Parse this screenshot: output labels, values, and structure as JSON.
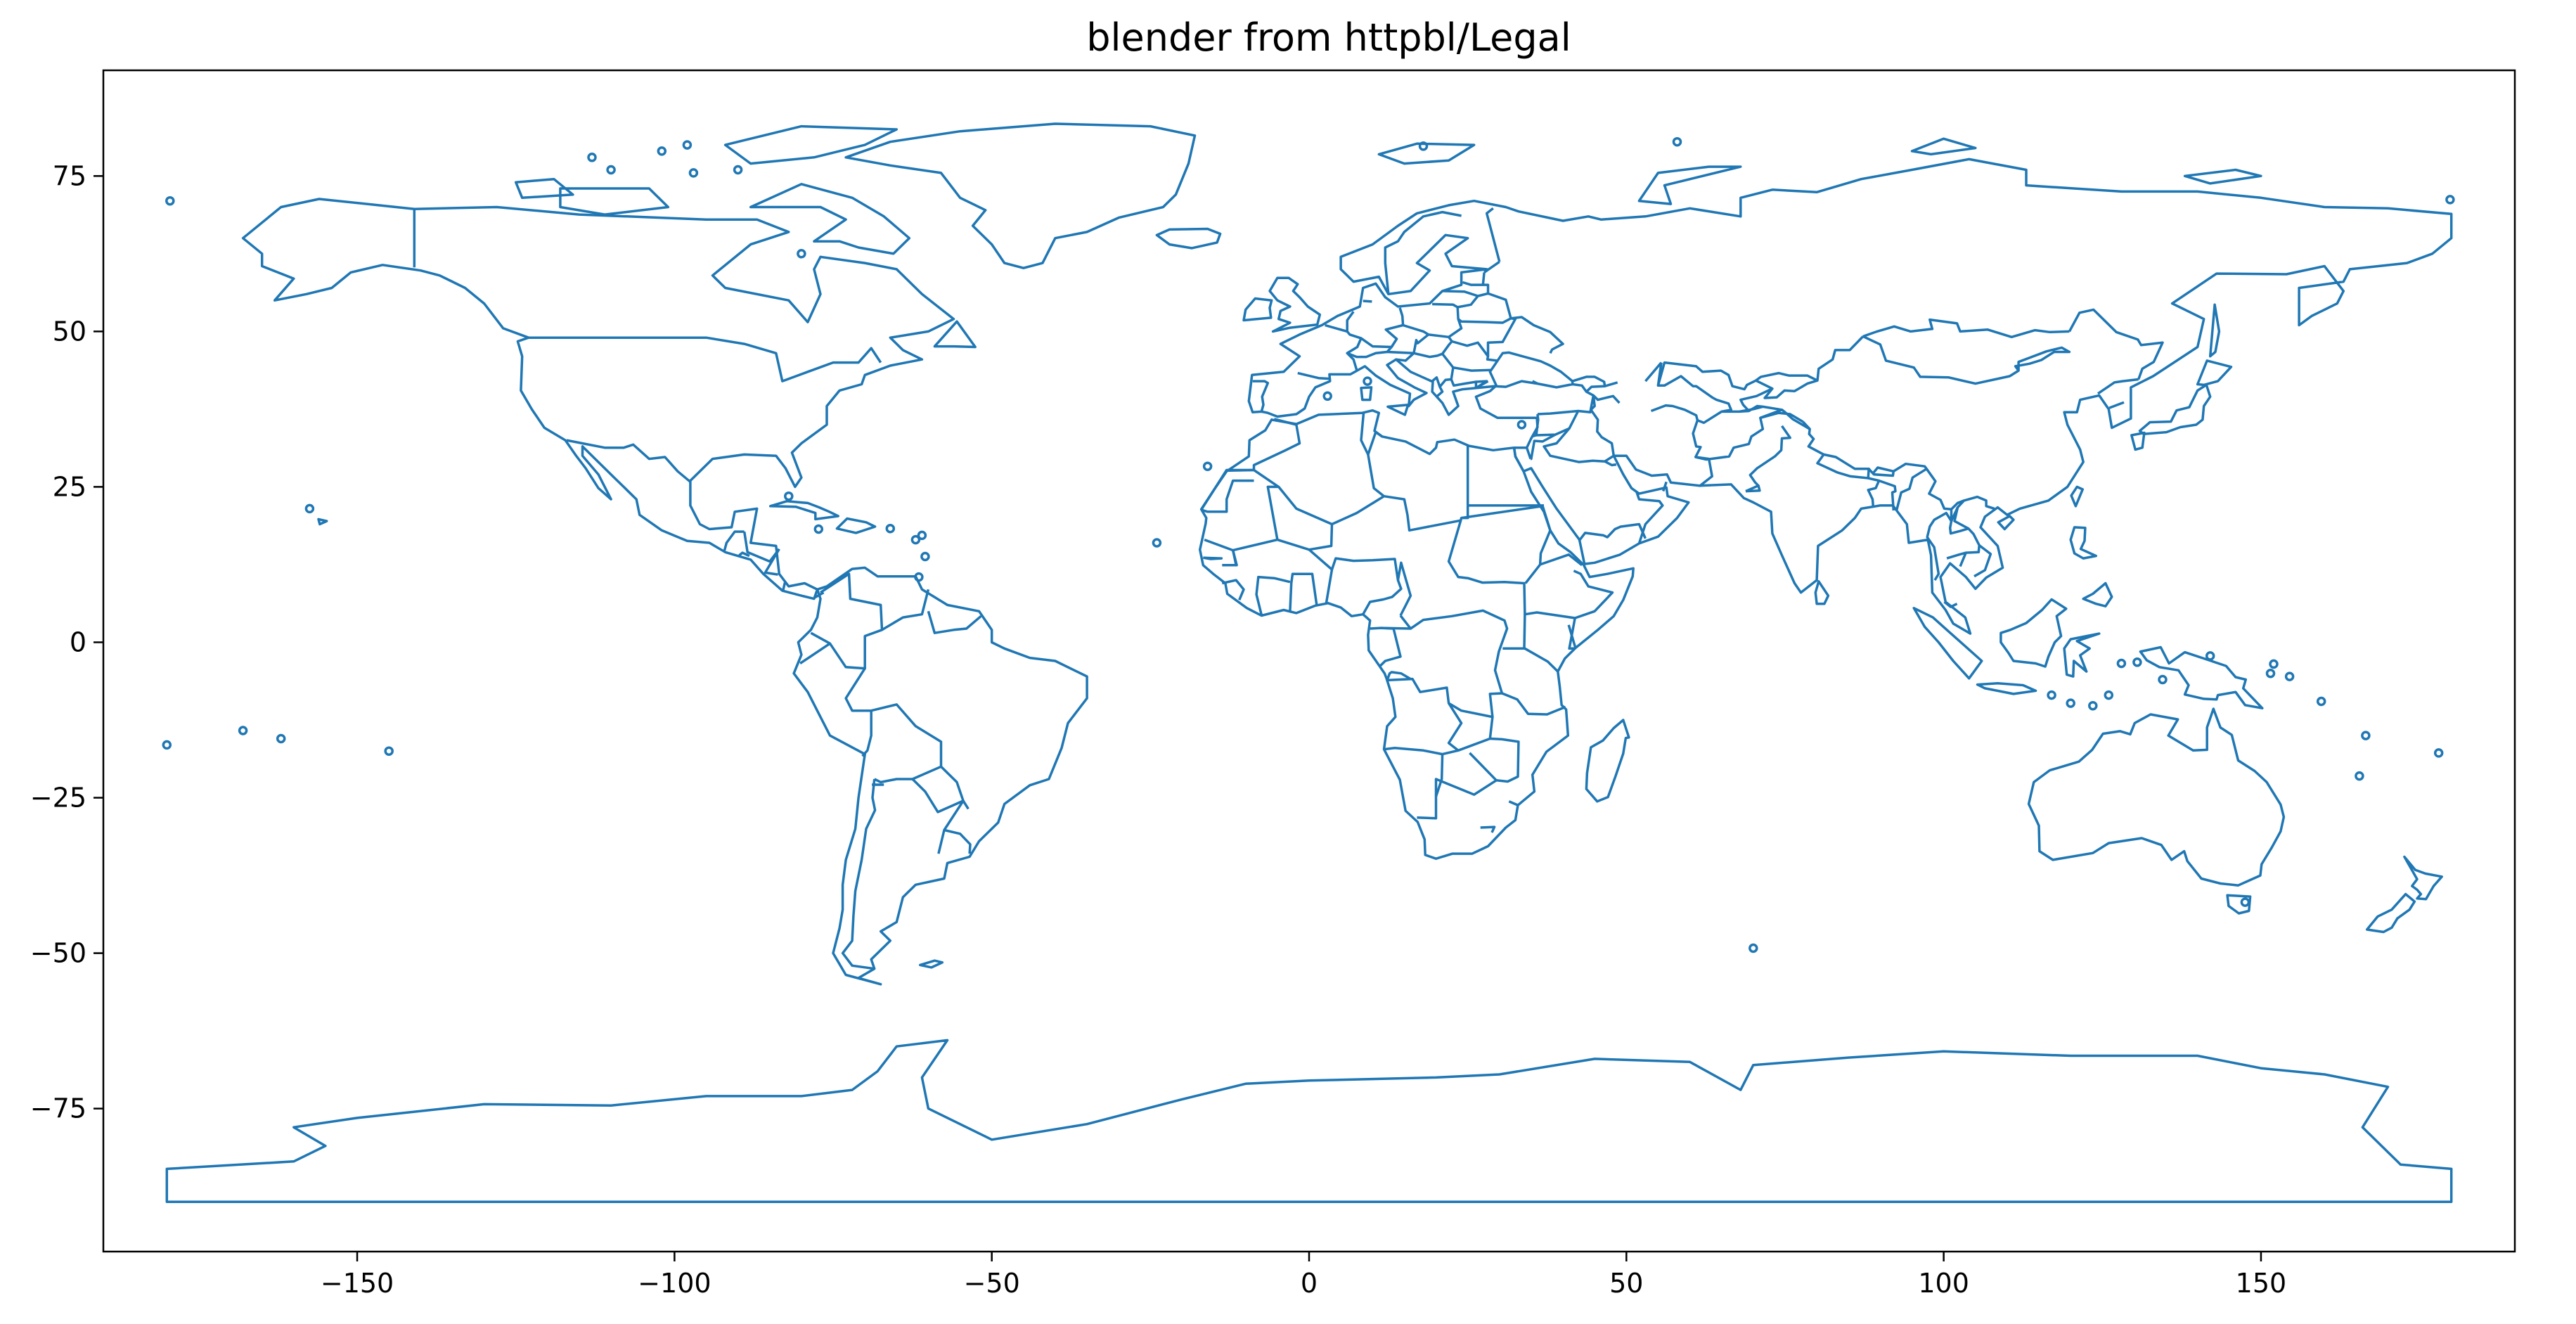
{
  "title": "blender from httpbl/Legal",
  "chart_data": {
    "type": "map",
    "projection": "plate-carree",
    "xlim": [
      -190,
      190
    ],
    "ylim": [
      -98,
      92
    ],
    "xticks": [
      -150,
      -100,
      -50,
      0,
      50,
      100,
      150
    ],
    "yticks": [
      -75,
      -50,
      -25,
      0,
      25,
      50,
      75
    ],
    "xtick_labels": [
      "−150",
      "−100",
      "−50",
      "0",
      "50",
      "100",
      "150"
    ],
    "ytick_labels": [
      "−75",
      "−50",
      "−25",
      "0",
      "25",
      "50",
      "75"
    ],
    "outline_color": "#1f77b4",
    "grid": false
  }
}
